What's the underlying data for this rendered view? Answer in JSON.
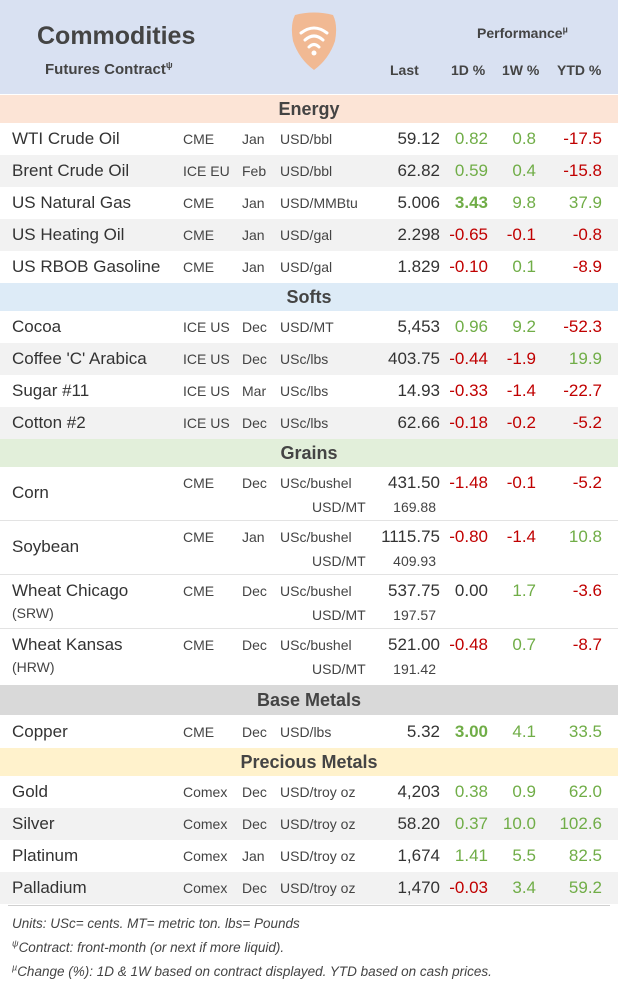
{
  "header": {
    "title": "Commodities",
    "subtitle": "Futures Contract",
    "subtitle_mark": "ψ",
    "performance": "Performance",
    "performance_mark": "µ",
    "col_last": "Last",
    "col_1d": "1D %",
    "col_1w": "1W %",
    "col_ytd": "YTD %"
  },
  "sections": {
    "energy": {
      "title": "Energy",
      "rows": [
        {
          "name": "WTI Crude Oil",
          "exchange": "CME",
          "month": "Jan",
          "unit": "USD/bbl",
          "last": "59.12",
          "d1": "0.82",
          "w1": "0.8",
          "ytd": "-17.5"
        },
        {
          "name": "Brent Crude Oil",
          "exchange": "ICE EU",
          "month": "Feb",
          "unit": "USD/bbl",
          "last": "62.82",
          "d1": "0.59",
          "w1": "0.4",
          "ytd": "-15.8"
        },
        {
          "name": "US Natural Gas",
          "exchange": "CME",
          "month": "Jan",
          "unit": "USD/MMBtu",
          "last": "5.006",
          "d1": "3.43",
          "w1": "9.8",
          "ytd": "37.9"
        },
        {
          "name": "US Heating Oil",
          "exchange": "CME",
          "month": "Jan",
          "unit": "USD/gal",
          "last": "2.298",
          "d1": "-0.65",
          "w1": "-0.1",
          "ytd": "-0.8"
        },
        {
          "name": "US RBOB Gasoline",
          "exchange": "CME",
          "month": "Jan",
          "unit": "USD/gal",
          "last": "1.829",
          "d1": "-0.10",
          "w1": "0.1",
          "ytd": "-8.9"
        }
      ]
    },
    "softs": {
      "title": "Softs",
      "rows": [
        {
          "name": "Cocoa",
          "exchange": "ICE US",
          "month": "Dec",
          "unit": "USD/MT",
          "last": "5,453",
          "d1": "0.96",
          "w1": "9.2",
          "ytd": "-52.3"
        },
        {
          "name": "Coffee 'C' Arabica",
          "exchange": "ICE US",
          "month": "Dec",
          "unit": "USc/lbs",
          "last": "403.75",
          "d1": "-0.44",
          "w1": "-1.9",
          "ytd": "19.9"
        },
        {
          "name": "Sugar #11",
          "exchange": "ICE US",
          "month": "Mar",
          "unit": "USc/lbs",
          "last": "14.93",
          "d1": "-0.33",
          "w1": "-1.4",
          "ytd": "-22.7"
        },
        {
          "name": "Cotton #2",
          "exchange": "ICE US",
          "month": "Dec",
          "unit": "USc/lbs",
          "last": "62.66",
          "d1": "-0.18",
          "w1": "-0.2",
          "ytd": "-5.2"
        }
      ]
    },
    "grains": {
      "title": "Grains",
      "rows": [
        {
          "name": "Corn",
          "subname": "",
          "exchange": "CME",
          "month": "Dec",
          "unit": "USc/bushel",
          "last": "431.50",
          "d1": "-1.48",
          "w1": "-0.1",
          "ytd": "-5.2",
          "unit2": "USD/MT",
          "last2": "169.88"
        },
        {
          "name": "Soybean",
          "subname": "",
          "exchange": "CME",
          "month": "Jan",
          "unit": "USc/bushel",
          "last": "1115.75",
          "d1": "-0.80",
          "w1": "-1.4",
          "ytd": "10.8",
          "unit2": "USD/MT",
          "last2": "409.93"
        },
        {
          "name": "Wheat Chicago",
          "subname": "(SRW)",
          "exchange": "CME",
          "month": "Dec",
          "unit": "USc/bushel",
          "last": "537.75",
          "d1": "0.00",
          "w1": "1.7",
          "ytd": "-3.6",
          "unit2": "USD/MT",
          "last2": "197.57"
        },
        {
          "name": "Wheat Kansas",
          "subname": "(HRW)",
          "exchange": "CME",
          "month": "Dec",
          "unit": "USc/bushel",
          "last": "521.00",
          "d1": "-0.48",
          "w1": "0.7",
          "ytd": "-8.7",
          "unit2": "USD/MT",
          "last2": "191.42"
        }
      ]
    },
    "base_metals": {
      "title": "Base Metals",
      "rows": [
        {
          "name": "Copper",
          "exchange": "CME",
          "month": "Dec",
          "unit": "USD/lbs",
          "last": "5.32",
          "d1": "3.00",
          "w1": "4.1",
          "ytd": "33.5"
        }
      ]
    },
    "precious_metals": {
      "title": "Precious Metals",
      "rows": [
        {
          "name": "Gold",
          "exchange": "Comex",
          "month": "Dec",
          "unit": "USD/troy oz",
          "last": "4,203",
          "d1": "0.38",
          "w1": "0.9",
          "ytd": "62.0"
        },
        {
          "name": "Silver",
          "exchange": "Comex",
          "month": "Dec",
          "unit": "USD/troy oz",
          "last": "58.20",
          "d1": "0.37",
          "w1": "10.0",
          "ytd": "102.6"
        },
        {
          "name": "Platinum",
          "exchange": "Comex",
          "month": "Jan",
          "unit": "USD/troy oz",
          "last": "1,674",
          "d1": "1.41",
          "w1": "5.5",
          "ytd": "82.5"
        },
        {
          "name": "Palladium",
          "exchange": "Comex",
          "month": "Dec",
          "unit": "USD/troy oz",
          "last": "1,470",
          "d1": "-0.03",
          "w1": "3.4",
          "ytd": "59.2"
        }
      ]
    }
  },
  "footer": {
    "units_note": "Units: USc= cents.  MT= metric ton.  lbs= Pounds",
    "contract_mark": "ψ",
    "contract_note": "Contract: front-month (or next if more liquid).",
    "change_mark": "µ",
    "change_note": "Change (%): 1D & 1W based on contract displayed. YTD based on cash prices."
  },
  "colors": {
    "header_bg": "#d9e1f2",
    "energy_band": "#fce4d6",
    "softs_band": "#ddebf7",
    "grains_band": "#e2efda",
    "base_metals_band": "#d9d9d9",
    "precious_metals_band": "#fff2cc",
    "row_stripe": "#f2f2f2",
    "positive": "#70ad47",
    "negative": "#c00000",
    "logo": "#f4b183"
  },
  "icons": {
    "logo": "wifi-signal-logo-icon"
  }
}
